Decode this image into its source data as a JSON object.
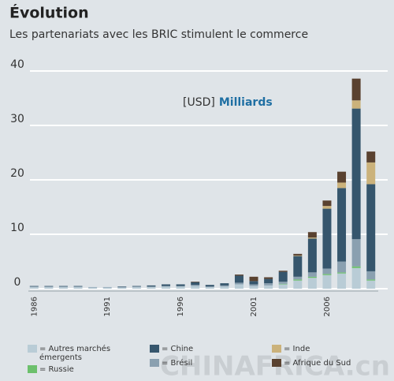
{
  "chart_data": {
    "type": "stacked_bar",
    "title": "Évolution",
    "subtitle": "Les partenariats avec les BRIC stimulent le commerce",
    "annotation_unit": "[USD]",
    "annotation": "Milliards",
    "watermark": "CHINAFRICA.cn",
    "categories": [
      "1986",
      null,
      null,
      null,
      null,
      "1991",
      null,
      null,
      null,
      null,
      "1996",
      null,
      null,
      null,
      null,
      "2001",
      null,
      null,
      null,
      null,
      "2006",
      null,
      null,
      null
    ],
    "series": [
      {
        "name": "= Autres marchés émergents",
        "color": "#b9ccd6",
        "values": [
          0.3,
          0.3,
          0.3,
          0.3,
          0.2,
          0.2,
          0.2,
          0.3,
          0.3,
          0.4,
          0.4,
          0.5,
          0.3,
          0.4,
          0.8,
          0.5,
          0.6,
          0.8,
          1.5,
          2.0,
          2.5,
          2.8,
          3.8,
          1.5
        ]
      },
      {
        "name": "= Russie",
        "color": "#6cc06c",
        "values": [
          0,
          0,
          0,
          0,
          0,
          0,
          0,
          0,
          0,
          0,
          0,
          0,
          0,
          0,
          0,
          0,
          0,
          0.1,
          0.2,
          0.2,
          0.2,
          0.2,
          0.3,
          0.2
        ]
      },
      {
        "name": "= Brésil",
        "color": "#8aa0b0",
        "values": [
          0.1,
          0.1,
          0.1,
          0.1,
          0.1,
          0.1,
          0.1,
          0.1,
          0.1,
          0.1,
          0.1,
          0.2,
          0.1,
          0.2,
          0.3,
          0.3,
          0.4,
          0.4,
          0.5,
          0.8,
          1.0,
          2.0,
          5.0,
          1.5
        ]
      },
      {
        "name": "= Chine",
        "color": "#36566d",
        "values": [
          0.1,
          0.1,
          0.1,
          0.1,
          0,
          0,
          0.1,
          0.1,
          0.2,
          0.3,
          0.3,
          0.5,
          0.3,
          0.4,
          1.3,
          0.6,
          0.8,
          1.8,
          3.8,
          6.2,
          11.0,
          13.5,
          24.0,
          16.0
        ]
      },
      {
        "name": "= Inde",
        "color": "#cbb27b",
        "values": [
          0,
          0,
          0,
          0,
          0,
          0,
          0,
          0,
          0,
          0,
          0,
          0,
          0,
          0,
          0,
          0,
          0,
          0,
          0.1,
          0.2,
          0.5,
          1.0,
          1.5,
          4.0
        ]
      },
      {
        "name": "= Afrique du Sud",
        "color": "#5a4230",
        "values": [
          0,
          0,
          0,
          0,
          0,
          0,
          0,
          0,
          0,
          0,
          0,
          0.1,
          0,
          0,
          0.2,
          0.8,
          0.3,
          0.2,
          0.3,
          1.0,
          1.0,
          2.0,
          4.0,
          2.0
        ]
      }
    ],
    "ylim": [
      0,
      40
    ],
    "yticks": [
      0,
      10,
      20,
      30,
      40
    ],
    "grid": true
  }
}
